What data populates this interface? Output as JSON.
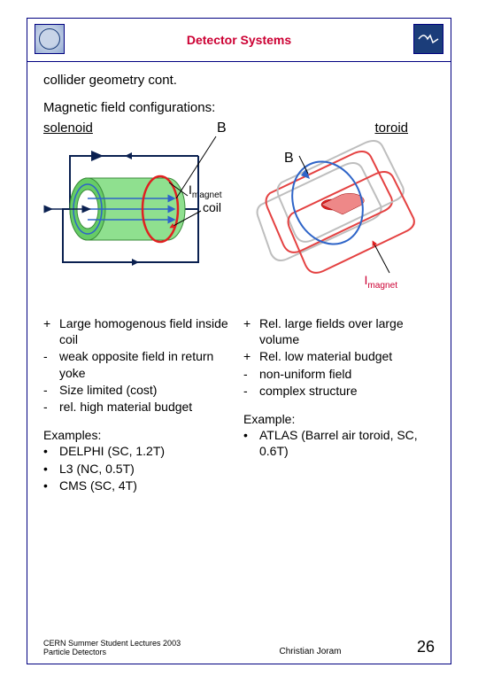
{
  "header": {
    "title": "Detector Systems"
  },
  "subtitle": "collider geometry cont.",
  "section_label": "Magnetic field configurations:",
  "diagram": {
    "solenoid_label": "solenoid",
    "toroid_label": "toroid",
    "B1": "B",
    "B2": "B",
    "Imagnet1_prefix": "I",
    "Imagnet1_sub": "magnet",
    "coil_label": "coil",
    "Imagnet2_prefix": "I",
    "Imagnet2_sub": "magnet",
    "colors": {
      "border": "#000080",
      "accent_red": "#cc0033",
      "field_lines": "#2e64c8",
      "arrow_dark": "#0a2050",
      "coil_green": "#66cc66",
      "coil_green_light": "#8fe08f",
      "coil_red": "#e02020",
      "beam_red": "#e02020",
      "grey": "#b3b3b3"
    }
  },
  "left_col": {
    "bullets": [
      {
        "mark": "+",
        "text": "Large homogenous field inside coil"
      },
      {
        "mark": "-",
        "text": "weak opposite field in return yoke"
      },
      {
        "mark": "-",
        "text": "Size limited (cost)"
      },
      {
        "mark": "-",
        "text": "rel. high material budget"
      }
    ],
    "examples_heading": "Examples:",
    "examples": [
      "DELPHI (SC, 1.2T)",
      "L3 (NC, 0.5T)",
      "CMS (SC, 4T)"
    ]
  },
  "right_col": {
    "bullets": [
      {
        "mark": "+",
        "text": "Rel. large fields over large volume"
      },
      {
        "mark": "+",
        "text": "Rel. low material budget"
      },
      {
        "mark": "-",
        "text": "non-uniform field"
      },
      {
        "mark": "-",
        "text": "complex structure"
      }
    ],
    "examples_heading": "Example:",
    "examples": [
      "ATLAS (Barrel air toroid, SC, 0.6T)"
    ]
  },
  "footer": {
    "left_line1": "CERN Summer Student Lectures 2003",
    "left_line2": "Particle Detectors",
    "center": "Christian Joram",
    "page": "26"
  }
}
